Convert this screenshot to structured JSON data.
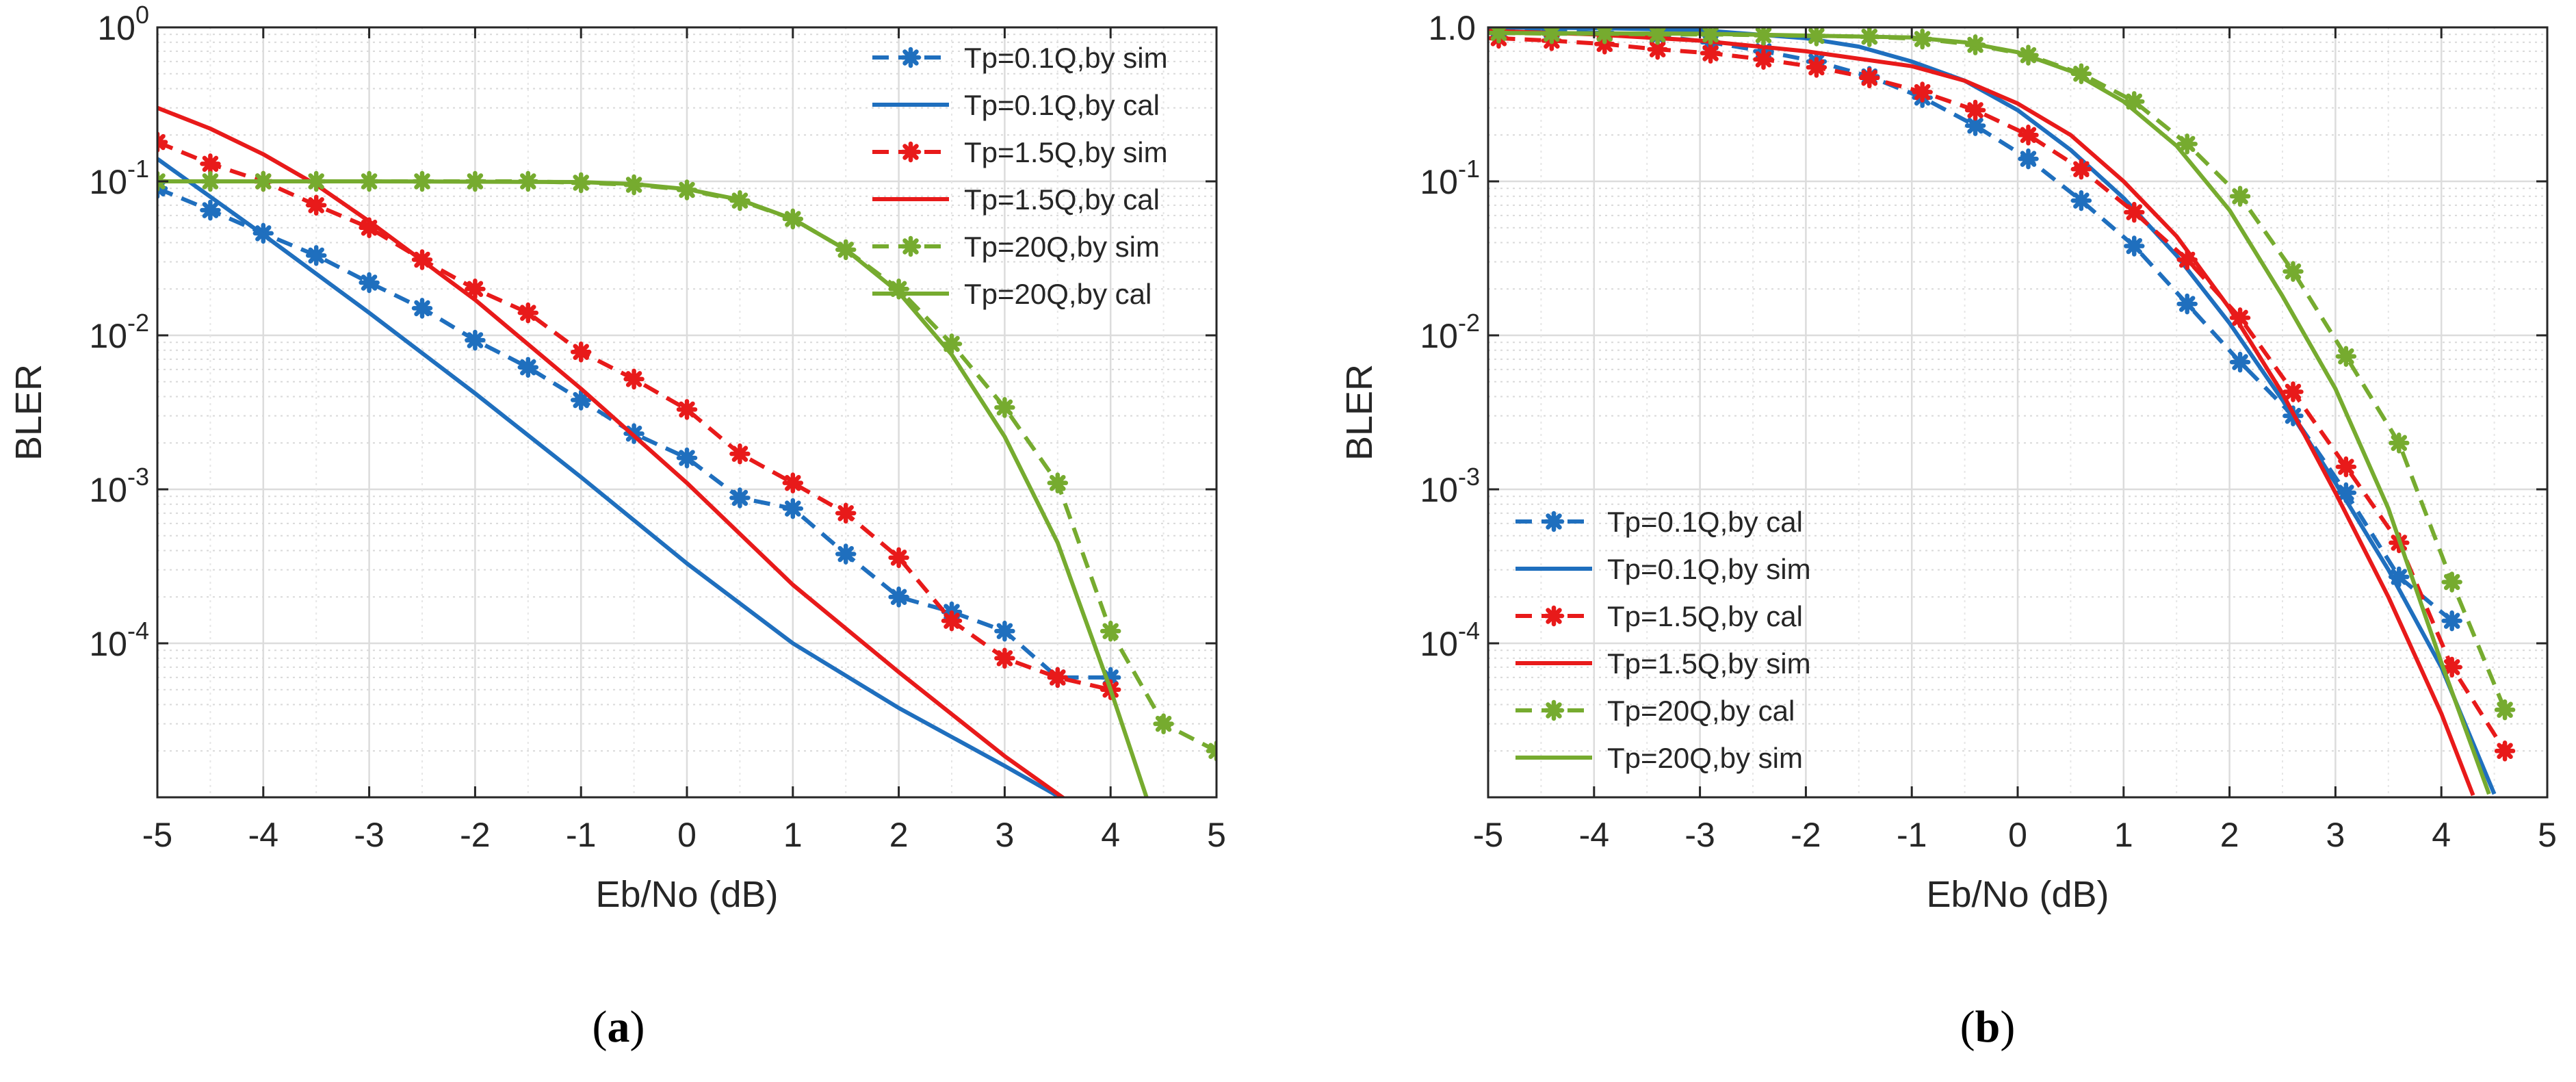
{
  "chart_data": [
    {
      "type": "line",
      "panel": "a",
      "caption": {
        "pre": "(",
        "letter": "a",
        "post": ")"
      },
      "xlabel": "Eb/No (dB)",
      "ylabel": "BLER",
      "xlim": [
        -5,
        5
      ],
      "ylim": [
        1e-05,
        1
      ],
      "yscale": "log",
      "x_ticks": [
        "-5",
        "-4",
        "-3",
        "-2",
        "-1",
        "0",
        "1",
        "2",
        "3",
        "4",
        "5"
      ],
      "y_ticks": [
        {
          "base": "10",
          "exp": "0"
        },
        {
          "base": "10",
          "exp": "-1"
        },
        {
          "base": "10",
          "exp": "-2"
        },
        {
          "base": "10",
          "exp": "-3"
        },
        {
          "base": "10",
          "exp": "-4"
        }
      ],
      "grid": true,
      "legend_position": "top-right",
      "series": [
        {
          "name": "Tp=0.1Q,by sim",
          "color": "#1f6fbe",
          "style": "dashed",
          "marker": "asterisk",
          "x": [
            -5,
            -4.5,
            -4,
            -3.5,
            -3,
            -2.5,
            -2,
            -1.5,
            -1,
            -0.5,
            0,
            0.5,
            1,
            1.5,
            2,
            2.5,
            3,
            3.5,
            4
          ],
          "y": [
            0.09,
            0.065,
            0.046,
            0.033,
            0.022,
            0.015,
            0.0093,
            0.0062,
            0.0038,
            0.0023,
            0.0016,
            0.00088,
            0.00075,
            0.00038,
            0.0002,
            0.00016,
            0.00012,
            6e-05,
            6e-05
          ]
        },
        {
          "name": "Tp=0.1Q,by cal",
          "color": "#1f6fbe",
          "style": "solid",
          "marker": "none",
          "x": [
            -5,
            -4,
            -3,
            -2,
            -1,
            0,
            1,
            2,
            3,
            3.5
          ],
          "y": [
            0.14,
            0.045,
            0.014,
            0.0042,
            0.0012,
            0.00033,
            0.0001,
            3.8e-05,
            1.6e-05,
            1.02e-05
          ]
        },
        {
          "name": "Tp=1.5Q,by sim",
          "color": "#e81a1a",
          "style": "dashed",
          "marker": "asterisk",
          "x": [
            -5,
            -4.5,
            -4,
            -3.5,
            -3,
            -2.5,
            -2,
            -1.5,
            -1,
            -0.5,
            0,
            0.5,
            1,
            1.5,
            2,
            2.5,
            3,
            3.5,
            4
          ],
          "y": [
            0.18,
            0.13,
            0.1,
            0.07,
            0.05,
            0.031,
            0.02,
            0.014,
            0.0078,
            0.0052,
            0.0033,
            0.0017,
            0.0011,
            0.0007,
            0.00036,
            0.00014,
            8e-05,
            6e-05,
            5e-05
          ]
        },
        {
          "name": "Tp=1.5Q,by cal",
          "color": "#e81a1a",
          "style": "solid",
          "marker": "none",
          "x": [
            -5,
            -4.5,
            -4,
            -3.5,
            -3,
            -2,
            -1,
            0,
            1,
            2,
            3,
            3.6
          ],
          "y": [
            0.3,
            0.22,
            0.15,
            0.095,
            0.055,
            0.017,
            0.0045,
            0.0011,
            0.00024,
            6.5e-05,
            1.85e-05,
            9.4e-06
          ]
        },
        {
          "name": "Tp=20Q,by sim",
          "color": "#76ab2f",
          "style": "dashed",
          "marker": "asterisk",
          "x": [
            -5,
            -4.5,
            -4,
            -3.5,
            -3,
            -2.5,
            -2,
            -1.5,
            -1,
            -0.5,
            0,
            0.5,
            1,
            1.5,
            2,
            2.5,
            3,
            3.5,
            4,
            4.5,
            5
          ],
          "y": [
            0.1,
            0.1,
            0.1,
            0.1,
            0.1,
            0.1,
            0.1,
            0.1,
            0.098,
            0.095,
            0.088,
            0.075,
            0.057,
            0.036,
            0.02,
            0.0088,
            0.0034,
            0.0011,
            0.00012,
            3e-05,
            2e-05
          ]
        },
        {
          "name": "Tp=20Q,by cal",
          "color": "#76ab2f",
          "style": "solid",
          "marker": "none",
          "x": [
            -5,
            -3,
            -1,
            -0.5,
            0,
            0.5,
            1,
            1.5,
            2,
            2.5,
            3,
            3.5,
            4,
            4.35
          ],
          "y": [
            0.1,
            0.1,
            0.099,
            0.096,
            0.089,
            0.076,
            0.057,
            0.036,
            0.019,
            0.0075,
            0.0022,
            0.00045,
            5e-05,
            9.5e-06
          ]
        }
      ]
    },
    {
      "type": "line",
      "panel": "b",
      "caption": {
        "pre": "(",
        "letter": "b",
        "post": ")"
      },
      "xlabel": "Eb/No (dB)",
      "ylabel": "BLER",
      "xlim": [
        -5,
        5
      ],
      "ylim": [
        1e-05,
        1
      ],
      "yscale": "log",
      "x_ticks": [
        "-5",
        "-4",
        "-3",
        "-2",
        "-1",
        "0",
        "1",
        "2",
        "3",
        "4",
        "5"
      ],
      "y_ticks": [
        {
          "base": "1.0",
          "exp": ""
        },
        {
          "base": "10",
          "exp": "-1"
        },
        {
          "base": "10",
          "exp": "-2"
        },
        {
          "base": "10",
          "exp": "-3"
        },
        {
          "base": "10",
          "exp": "-4"
        }
      ],
      "grid": true,
      "legend_position": "bottom-left",
      "series": [
        {
          "name": "Tp=0.1Q,by cal",
          "color": "#1f6fbe",
          "style": "dashed",
          "marker": "asterisk",
          "x": [
            -4.9,
            -4.4,
            -3.9,
            -3.4,
            -2.9,
            -2.4,
            -1.9,
            -1.4,
            -0.9,
            -0.4,
            0.1,
            0.6,
            1.1,
            1.6,
            2.1,
            2.6,
            3.1,
            3.6,
            4.1
          ],
          "y": [
            0.97,
            0.95,
            0.92,
            0.88,
            0.8,
            0.7,
            0.6,
            0.48,
            0.35,
            0.23,
            0.14,
            0.075,
            0.038,
            0.016,
            0.0067,
            0.003,
            0.00095,
            0.00027,
            0.00014
          ]
        },
        {
          "name": "Tp=0.1Q,by sim",
          "color": "#1f6fbe",
          "style": "solid",
          "marker": "none",
          "x": [
            -5,
            -4,
            -3,
            -2,
            -1.5,
            -1,
            -0.5,
            0,
            0.5,
            1,
            1.5,
            2,
            2.5,
            3,
            3.5,
            4,
            4.5
          ],
          "y": [
            1.0,
            0.99,
            0.96,
            0.85,
            0.75,
            0.6,
            0.45,
            0.29,
            0.16,
            0.078,
            0.033,
            0.012,
            0.0038,
            0.0011,
            0.0003,
            7e-05,
            1.05e-05
          ]
        },
        {
          "name": "Tp=1.5Q,by cal",
          "color": "#e81a1a",
          "style": "dashed",
          "marker": "asterisk",
          "x": [
            -4.9,
            -4.4,
            -3.9,
            -3.4,
            -2.9,
            -2.4,
            -1.9,
            -1.4,
            -0.9,
            -0.4,
            0.1,
            0.6,
            1.1,
            1.6,
            2.1,
            2.6,
            3.1,
            3.6,
            4.1,
            4.6
          ],
          "y": [
            0.85,
            0.82,
            0.78,
            0.72,
            0.68,
            0.62,
            0.55,
            0.47,
            0.38,
            0.29,
            0.2,
            0.12,
            0.063,
            0.031,
            0.013,
            0.0043,
            0.0014,
            0.00045,
            7e-05,
            2e-05
          ]
        },
        {
          "name": "Tp=1.5Q,by sim",
          "color": "#e81a1a",
          "style": "solid",
          "marker": "none",
          "x": [
            -5,
            -4,
            -3,
            -2,
            -1,
            -0.5,
            0,
            0.5,
            1,
            1.5,
            2,
            2.5,
            3,
            3.5,
            4,
            4.3
          ],
          "y": [
            0.95,
            0.9,
            0.82,
            0.7,
            0.56,
            0.45,
            0.32,
            0.2,
            0.1,
            0.044,
            0.015,
            0.0042,
            0.00095,
            0.0002,
            3.5e-05,
            1.03e-05
          ]
        },
        {
          "name": "Tp=20Q,by cal",
          "color": "#76ab2f",
          "style": "dashed",
          "marker": "asterisk",
          "x": [
            -4.9,
            -4.4,
            -3.9,
            -3.4,
            -2.9,
            -2.4,
            -1.9,
            -1.4,
            -0.9,
            -0.4,
            0.1,
            0.6,
            1.1,
            1.6,
            2.1,
            2.6,
            3.1,
            3.6,
            4.1,
            4.6
          ],
          "y": [
            0.92,
            0.91,
            0.91,
            0.9,
            0.9,
            0.89,
            0.88,
            0.87,
            0.84,
            0.77,
            0.66,
            0.5,
            0.33,
            0.175,
            0.08,
            0.026,
            0.0073,
            0.002,
            0.00025,
            3.7e-05
          ]
        },
        {
          "name": "Tp=20Q,by sim",
          "color": "#76ab2f",
          "style": "solid",
          "marker": "none",
          "x": [
            -5,
            -3,
            -1,
            -0.5,
            0,
            0.5,
            1,
            1.5,
            2,
            2.5,
            3,
            3.5,
            4,
            4.45
          ],
          "y": [
            0.92,
            0.91,
            0.86,
            0.8,
            0.69,
            0.52,
            0.33,
            0.17,
            0.065,
            0.018,
            0.0045,
            0.00075,
            7.5e-05,
            1.05e-05
          ]
        }
      ]
    }
  ]
}
